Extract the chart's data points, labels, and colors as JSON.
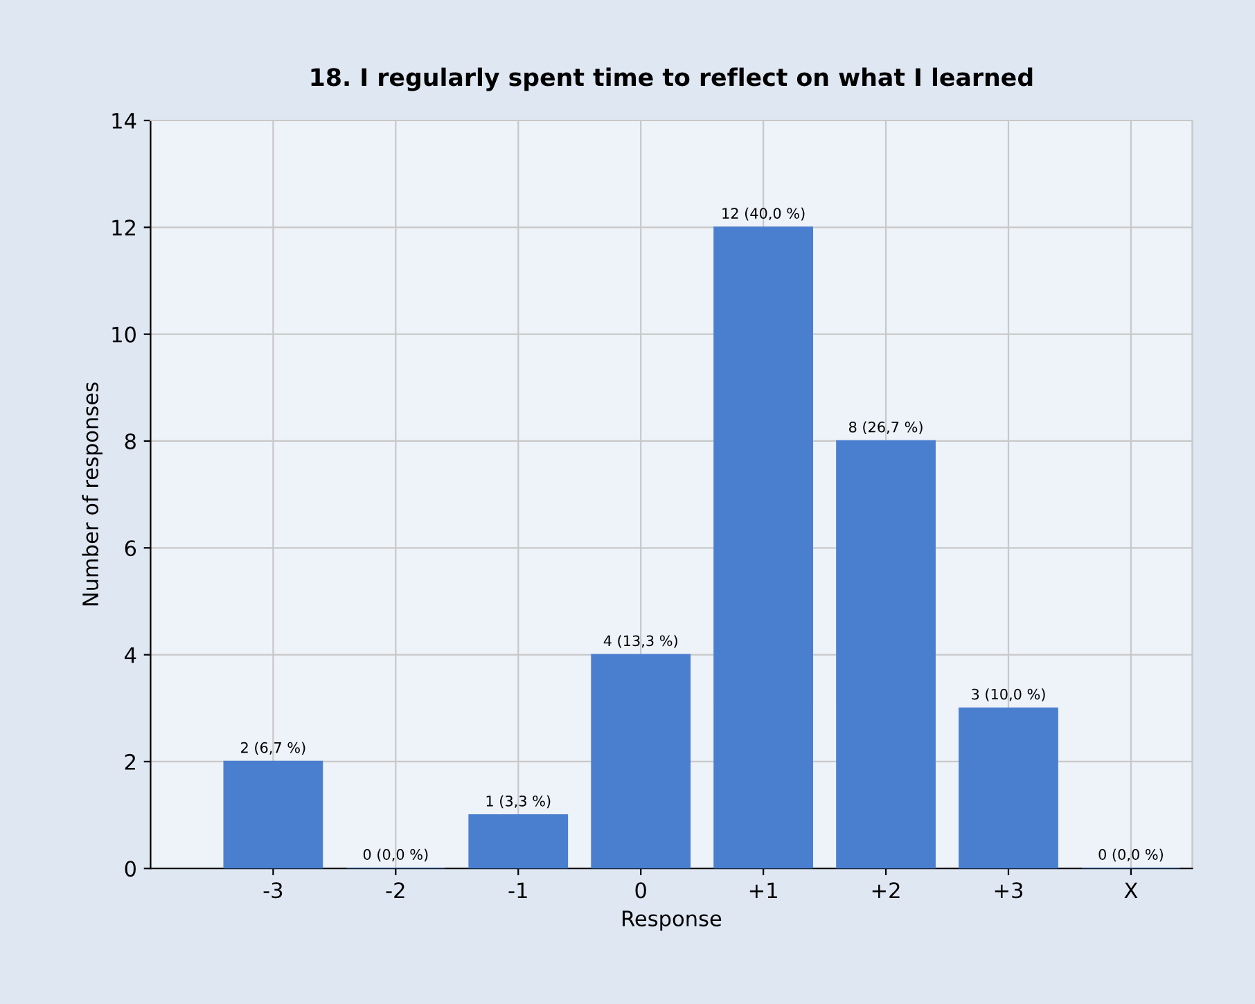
{
  "chart_data": {
    "type": "bar",
    "title": "18. I regularly spent time to reflect on what I learned",
    "xlabel": "Response",
    "ylabel": "Number of responses",
    "categories": [
      "-3",
      "-2",
      "-1",
      "0",
      "+1",
      "+2",
      "+3",
      "X"
    ],
    "values": [
      2,
      0,
      1,
      4,
      12,
      8,
      3,
      0
    ],
    "value_labels": [
      "2 (6,7 %)",
      "0 (0,0 %)",
      "1 (3,3 %)",
      "4 (13,3 %)",
      "12 (40,0 %)",
      "8 (26,7 %)",
      "3 (10,0 %)",
      "0 (0,0 %)"
    ],
    "color": "#4a7fd0",
    "ylim": [
      0,
      14
    ],
    "yticks": [
      0,
      2,
      4,
      6,
      8,
      10,
      12,
      14
    ],
    "grid": true
  }
}
